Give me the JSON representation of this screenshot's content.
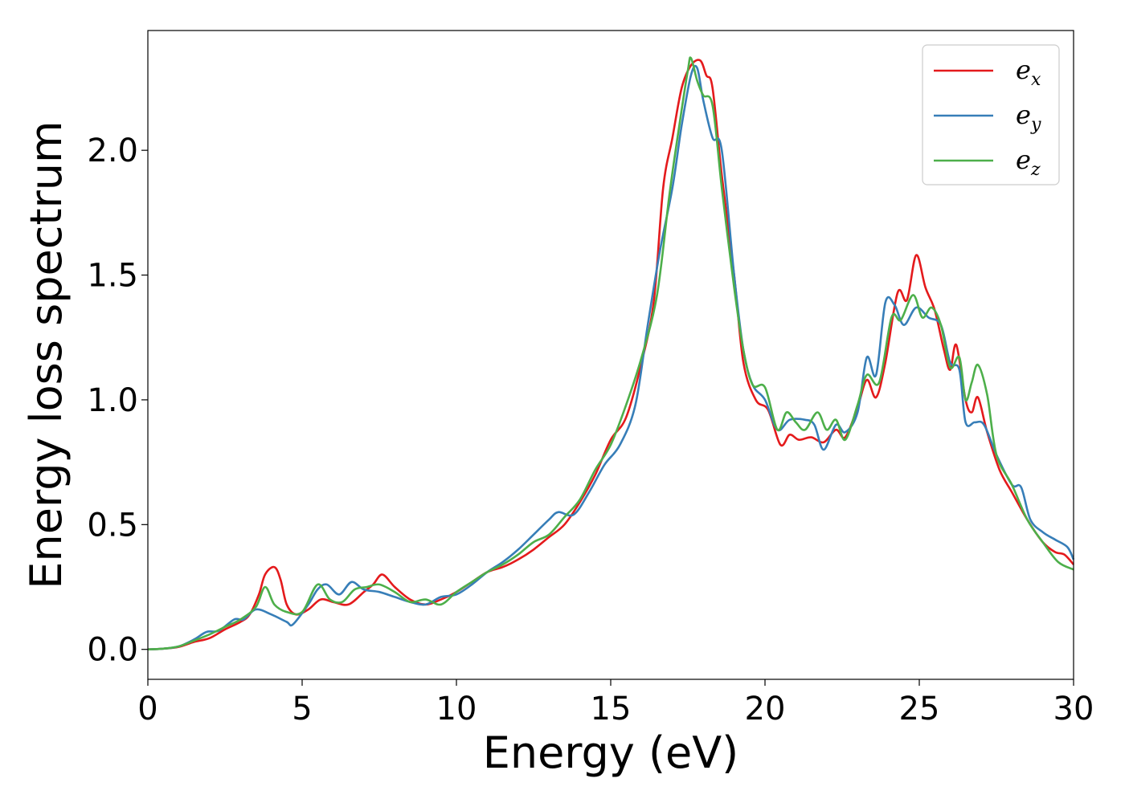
{
  "chart_data": {
    "type": "line",
    "xlabel": "Energy (eV)",
    "ylabel": "Energy loss spectrum",
    "xlim": [
      0,
      30
    ],
    "ylim": [
      -0.12,
      2.48
    ],
    "xticks": [
      {
        "value": 0,
        "label": "0"
      },
      {
        "value": 5,
        "label": "5"
      },
      {
        "value": 10,
        "label": "10"
      },
      {
        "value": 15,
        "label": "15"
      },
      {
        "value": 20,
        "label": "20"
      },
      {
        "value": 25,
        "label": "25"
      },
      {
        "value": 30,
        "label": "30"
      }
    ],
    "yticks": [
      {
        "value": 0.0,
        "label": "0.0"
      },
      {
        "value": 0.5,
        "label": "0.5"
      },
      {
        "value": 1.0,
        "label": "1.0"
      },
      {
        "value": 1.5,
        "label": "1.5"
      },
      {
        "value": 2.0,
        "label": "2.0"
      }
    ],
    "grid": false,
    "legend_position": "top-right",
    "series": [
      {
        "name": "e",
        "sub": "x",
        "color": "#e41a1c",
        "points": [
          [
            0,
            0
          ],
          [
            0.5,
            0.003
          ],
          [
            1,
            0.01
          ],
          [
            1.5,
            0.03
          ],
          [
            2,
            0.045
          ],
          [
            2.5,
            0.08
          ],
          [
            3,
            0.11
          ],
          [
            3.3,
            0.14
          ],
          [
            3.6,
            0.22
          ],
          [
            3.8,
            0.3
          ],
          [
            4.1,
            0.33
          ],
          [
            4.3,
            0.28
          ],
          [
            4.5,
            0.18
          ],
          [
            4.8,
            0.14
          ],
          [
            5.2,
            0.16
          ],
          [
            5.6,
            0.2
          ],
          [
            6,
            0.19
          ],
          [
            6.5,
            0.18
          ],
          [
            7,
            0.23
          ],
          [
            7.3,
            0.26
          ],
          [
            7.6,
            0.3
          ],
          [
            8,
            0.25
          ],
          [
            8.5,
            0.2
          ],
          [
            9,
            0.18
          ],
          [
            9.5,
            0.2
          ],
          [
            10,
            0.23
          ],
          [
            10.5,
            0.27
          ],
          [
            11,
            0.31
          ],
          [
            11.5,
            0.33
          ],
          [
            12,
            0.36
          ],
          [
            12.5,
            0.4
          ],
          [
            13,
            0.45
          ],
          [
            13.5,
            0.5
          ],
          [
            14,
            0.59
          ],
          [
            14.5,
            0.7
          ],
          [
            15,
            0.84
          ],
          [
            15.5,
            0.93
          ],
          [
            16,
            1.15
          ],
          [
            16.4,
            1.4
          ],
          [
            16.7,
            1.85
          ],
          [
            17,
            2.05
          ],
          [
            17.3,
            2.25
          ],
          [
            17.6,
            2.34
          ],
          [
            17.9,
            2.36
          ],
          [
            18.1,
            2.3
          ],
          [
            18.3,
            2.25
          ],
          [
            18.6,
            1.9
          ],
          [
            19,
            1.5
          ],
          [
            19.3,
            1.15
          ],
          [
            19.7,
            1.0
          ],
          [
            20.1,
            0.96
          ],
          [
            20.5,
            0.82
          ],
          [
            20.8,
            0.86
          ],
          [
            21.1,
            0.84
          ],
          [
            21.5,
            0.85
          ],
          [
            21.9,
            0.83
          ],
          [
            22.3,
            0.88
          ],
          [
            22.6,
            0.85
          ],
          [
            23,
            0.97
          ],
          [
            23.3,
            1.08
          ],
          [
            23.6,
            1.01
          ],
          [
            23.9,
            1.15
          ],
          [
            24.3,
            1.43
          ],
          [
            24.6,
            1.4
          ],
          [
            24.9,
            1.58
          ],
          [
            25.2,
            1.45
          ],
          [
            25.5,
            1.36
          ],
          [
            25.8,
            1.2
          ],
          [
            26,
            1.12
          ],
          [
            26.2,
            1.22
          ],
          [
            26.5,
            1.0
          ],
          [
            26.7,
            0.95
          ],
          [
            26.9,
            1.01
          ],
          [
            27.2,
            0.87
          ],
          [
            27.6,
            0.72
          ],
          [
            28,
            0.63
          ],
          [
            28.5,
            0.52
          ],
          [
            29,
            0.43
          ],
          [
            29.4,
            0.39
          ],
          [
            29.7,
            0.38
          ],
          [
            30,
            0.34
          ]
        ]
      },
      {
        "name": "e",
        "sub": "y",
        "color": "#377eb8",
        "points": [
          [
            0,
            0
          ],
          [
            0.5,
            0.003
          ],
          [
            1,
            0.012
          ],
          [
            1.5,
            0.04
          ],
          [
            1.9,
            0.07
          ],
          [
            2.3,
            0.075
          ],
          [
            2.8,
            0.12
          ],
          [
            3.1,
            0.12
          ],
          [
            3.5,
            0.16
          ],
          [
            4,
            0.14
          ],
          [
            4.5,
            0.11
          ],
          [
            4.7,
            0.1
          ],
          [
            5.2,
            0.18
          ],
          [
            5.5,
            0.24
          ],
          [
            5.8,
            0.26
          ],
          [
            6.2,
            0.22
          ],
          [
            6.6,
            0.27
          ],
          [
            7,
            0.24
          ],
          [
            7.5,
            0.23
          ],
          [
            8,
            0.21
          ],
          [
            8.5,
            0.19
          ],
          [
            9,
            0.18
          ],
          [
            9.5,
            0.21
          ],
          [
            10,
            0.22
          ],
          [
            10.5,
            0.26
          ],
          [
            11,
            0.31
          ],
          [
            11.5,
            0.35
          ],
          [
            12,
            0.4
          ],
          [
            12.5,
            0.46
          ],
          [
            13,
            0.52
          ],
          [
            13.3,
            0.55
          ],
          [
            13.8,
            0.54
          ],
          [
            14.3,
            0.63
          ],
          [
            14.8,
            0.74
          ],
          [
            15.3,
            0.82
          ],
          [
            15.8,
            0.98
          ],
          [
            16.2,
            1.3
          ],
          [
            16.6,
            1.6
          ],
          [
            17,
            1.85
          ],
          [
            17.3,
            2.1
          ],
          [
            17.6,
            2.3
          ],
          [
            17.8,
            2.33
          ],
          [
            18,
            2.2
          ],
          [
            18.3,
            2.05
          ],
          [
            18.6,
            2.0
          ],
          [
            19,
            1.5
          ],
          [
            19.3,
            1.2
          ],
          [
            19.6,
            1.06
          ],
          [
            20,
            1.0
          ],
          [
            20.4,
            0.88
          ],
          [
            20.8,
            0.92
          ],
          [
            21.3,
            0.92
          ],
          [
            21.6,
            0.9
          ],
          [
            21.9,
            0.8
          ],
          [
            22.3,
            0.9
          ],
          [
            22.6,
            0.87
          ],
          [
            23,
            0.95
          ],
          [
            23.3,
            1.17
          ],
          [
            23.6,
            1.1
          ],
          [
            23.9,
            1.39
          ],
          [
            24.2,
            1.38
          ],
          [
            24.5,
            1.3
          ],
          [
            24.9,
            1.37
          ],
          [
            25.3,
            1.33
          ],
          [
            25.7,
            1.3
          ],
          [
            26,
            1.15
          ],
          [
            26.3,
            1.12
          ],
          [
            26.5,
            0.91
          ],
          [
            26.8,
            0.91
          ],
          [
            27.1,
            0.9
          ],
          [
            27.5,
            0.78
          ],
          [
            28,
            0.66
          ],
          [
            28.3,
            0.65
          ],
          [
            28.6,
            0.52
          ],
          [
            29,
            0.47
          ],
          [
            29.4,
            0.44
          ],
          [
            29.8,
            0.41
          ],
          [
            30,
            0.36
          ]
        ]
      },
      {
        "name": "e",
        "sub": "z",
        "color": "#4daf4a",
        "points": [
          [
            0,
            0
          ],
          [
            0.5,
            0.003
          ],
          [
            1,
            0.012
          ],
          [
            1.5,
            0.035
          ],
          [
            2,
            0.06
          ],
          [
            2.5,
            0.09
          ],
          [
            3,
            0.12
          ],
          [
            3.5,
            0.17
          ],
          [
            3.8,
            0.25
          ],
          [
            4.1,
            0.18
          ],
          [
            4.5,
            0.15
          ],
          [
            5,
            0.15
          ],
          [
            5.5,
            0.26
          ],
          [
            5.9,
            0.2
          ],
          [
            6.3,
            0.19
          ],
          [
            6.7,
            0.24
          ],
          [
            7.1,
            0.25
          ],
          [
            7.5,
            0.26
          ],
          [
            8,
            0.23
          ],
          [
            8.5,
            0.19
          ],
          [
            9,
            0.2
          ],
          [
            9.5,
            0.18
          ],
          [
            10,
            0.23
          ],
          [
            10.5,
            0.27
          ],
          [
            11,
            0.31
          ],
          [
            11.5,
            0.34
          ],
          [
            12,
            0.38
          ],
          [
            12.5,
            0.43
          ],
          [
            13,
            0.46
          ],
          [
            13.5,
            0.53
          ],
          [
            14,
            0.6
          ],
          [
            14.5,
            0.72
          ],
          [
            15,
            0.82
          ],
          [
            15.5,
            0.98
          ],
          [
            16,
            1.17
          ],
          [
            16.5,
            1.42
          ],
          [
            16.9,
            1.82
          ],
          [
            17.2,
            2.08
          ],
          [
            17.5,
            2.32
          ],
          [
            17.6,
            2.37
          ],
          [
            17.8,
            2.28
          ],
          [
            18,
            2.22
          ],
          [
            18.3,
            2.18
          ],
          [
            18.6,
            1.85
          ],
          [
            19,
            1.45
          ],
          [
            19.3,
            1.2
          ],
          [
            19.6,
            1.06
          ],
          [
            20,
            1.05
          ],
          [
            20.4,
            0.88
          ],
          [
            20.7,
            0.95
          ],
          [
            21,
            0.91
          ],
          [
            21.3,
            0.88
          ],
          [
            21.7,
            0.95
          ],
          [
            22,
            0.88
          ],
          [
            22.3,
            0.92
          ],
          [
            22.6,
            0.84
          ],
          [
            23,
            0.98
          ],
          [
            23.3,
            1.1
          ],
          [
            23.7,
            1.07
          ],
          [
            24.1,
            1.33
          ],
          [
            24.4,
            1.32
          ],
          [
            24.8,
            1.42
          ],
          [
            25.1,
            1.33
          ],
          [
            25.4,
            1.37
          ],
          [
            25.7,
            1.3
          ],
          [
            26,
            1.13
          ],
          [
            26.3,
            1.17
          ],
          [
            26.5,
            1.0
          ],
          [
            26.7,
            1.07
          ],
          [
            26.9,
            1.14
          ],
          [
            27.2,
            1.02
          ],
          [
            27.5,
            0.78
          ],
          [
            28,
            0.66
          ],
          [
            28.5,
            0.52
          ],
          [
            29,
            0.43
          ],
          [
            29.5,
            0.35
          ],
          [
            30,
            0.32
          ]
        ]
      }
    ]
  }
}
